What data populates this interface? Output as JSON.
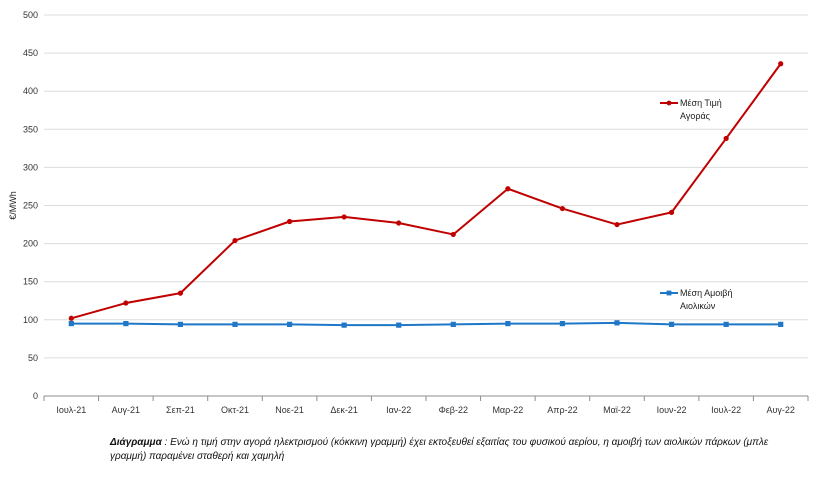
{
  "chart_data": {
    "type": "line",
    "ylabel": "€/MWh",
    "xlabel": "",
    "ylim": [
      0,
      500
    ],
    "yticks": [
      0,
      50,
      100,
      150,
      200,
      250,
      300,
      350,
      400,
      450,
      500
    ],
    "grid": true,
    "categories": [
      "Ιουλ-21",
      "Αυγ-21",
      "Σεπ-21",
      "Οκτ-21",
      "Νοε-21",
      "Δεκ-21",
      "Ιαν-22",
      "Φεβ-22",
      "Μαρ-22",
      "Απρ-22",
      "Μαϊ-22",
      "Ιουν-22",
      "Ιουλ-22",
      "Αυγ-22"
    ],
    "series": [
      {
        "name": "Μέση Τιμή Αγοράς",
        "legend_lines": [
          "Μέση Τιμή",
          "Αγοράς"
        ],
        "color": "#c00000",
        "marker": "circle",
        "values": [
          102,
          122,
          135,
          204,
          229,
          235,
          227,
          212,
          272,
          246,
          225,
          241,
          338,
          436
        ]
      },
      {
        "name": "Μέση Αμοιβή Αιολικών",
        "legend_lines": [
          "Μέση Αμοιβή",
          "Αιολικών"
        ],
        "color": "#1f77c8",
        "marker": "square",
        "values": [
          95,
          95,
          94,
          94,
          94,
          93,
          93,
          94,
          95,
          95,
          96,
          94,
          94,
          94
        ]
      }
    ]
  },
  "caption": {
    "lead": "Διάγραμμα",
    "text": " : Ενώ η τιμή στην αγορά ηλεκτρισμού (κόκκινη γραμμή) έχει εκτοξευθεί εξαιτίας του φυσικού αερίου, η αμοιβή των αιολικών πάρκων (μπλε γραμμή) παραμένει σταθερή και χαμηλή"
  }
}
